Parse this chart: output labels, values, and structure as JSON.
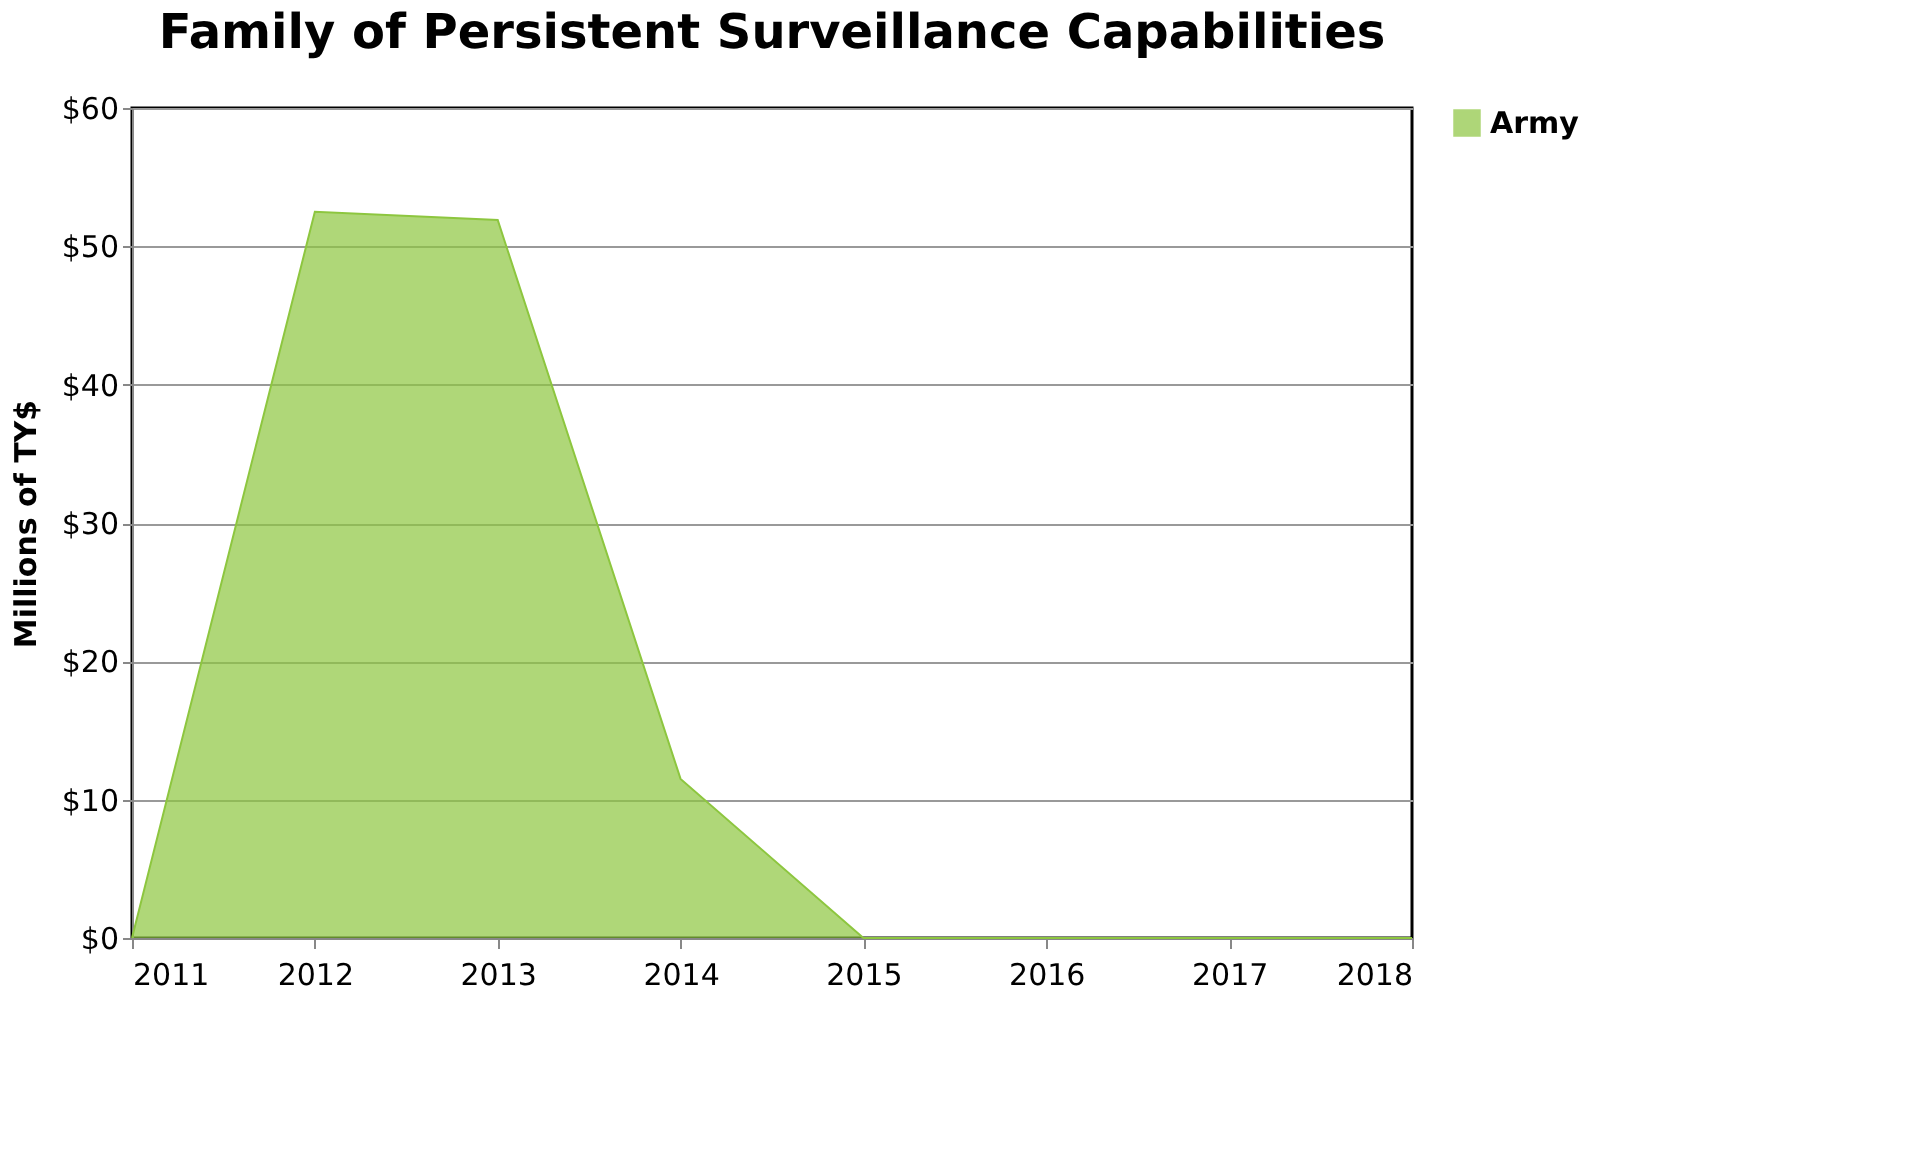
{
  "chart_data": {
    "type": "area",
    "title": "Family of Persistent Surveillance Capabilities",
    "ylabel": "Millions of TY$",
    "x": [
      2011,
      2012,
      2013,
      2014,
      2015,
      2016,
      2017,
      2018
    ],
    "series": [
      {
        "name": "Army",
        "color": "#8dc63f",
        "values": [
          0,
          52.5,
          51.9,
          11.5,
          0,
          0,
          0,
          0
        ]
      }
    ],
    "xlim": [
      2011,
      2018
    ],
    "xticks": [
      2011,
      2012,
      2013,
      2014,
      2015,
      2016,
      2017,
      2018
    ],
    "ylim": [
      0,
      60
    ],
    "yticks": [
      {
        "value": 0,
        "label": "$0"
      },
      {
        "value": 10,
        "label": "$10"
      },
      {
        "value": 20,
        "label": "$20"
      },
      {
        "value": 30,
        "label": "$30"
      },
      {
        "value": 40,
        "label": "$40"
      },
      {
        "value": 50,
        "label": "$50"
      },
      {
        "value": 60,
        "label": "$60"
      }
    ],
    "grid": "y",
    "legend": "right"
  }
}
